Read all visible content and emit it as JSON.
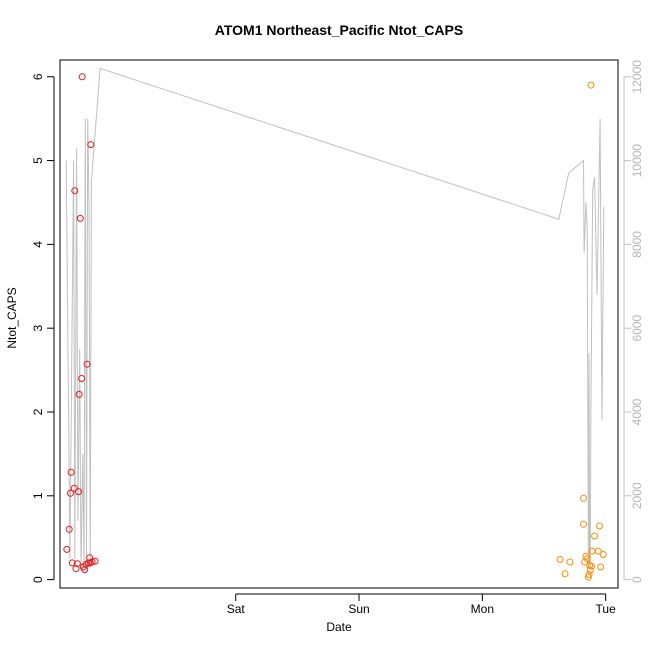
{
  "chart_data": {
    "type": "scatter",
    "title": "ATOM1 Northeast_Pacific Ntot_CAPS",
    "xlabel": "Date",
    "ylabel": "Ntot_CAPS",
    "x_tick_labels": [
      "Sat",
      "Sun",
      "Mon",
      "Tue"
    ],
    "x_tick_values": [
      1,
      2,
      3,
      4
    ],
    "xlim": [
      -0.425,
      4.1
    ],
    "y_tick_labels": [
      "0",
      "1",
      "2",
      "3",
      "4",
      "5",
      "6"
    ],
    "y_tick_values": [
      0,
      1,
      2,
      3,
      4,
      5,
      6
    ],
    "ylim": [
      -0.1,
      6.2
    ],
    "y2_tick_labels": [
      "0",
      "2000",
      "4000",
      "6000",
      "8000",
      "10000",
      "12000"
    ],
    "y2_tick_values": [
      0,
      2000,
      4000,
      6000,
      8000,
      10000,
      12000
    ],
    "y2lim": [
      -200,
      12400
    ],
    "grid": false,
    "legend": "none",
    "colors": {
      "series_red": "#e31a1c",
      "series_orange": "#ff8c00",
      "right_axis_line": "#c0c0c0",
      "right_axis_text": "#b5b5b5"
    },
    "series": [
      {
        "color": "#e31a1c",
        "marker": "open-circle",
        "points": [
          [
            -0.37,
            0.36
          ],
          [
            -0.35,
            0.6
          ],
          [
            -0.34,
            1.03
          ],
          [
            -0.335,
            1.28
          ],
          [
            -0.325,
            0.2
          ],
          [
            -0.31,
            1.09
          ],
          [
            -0.305,
            4.64
          ],
          [
            -0.295,
            0.13
          ],
          [
            -0.285,
            0.19
          ],
          [
            -0.275,
            1.05
          ],
          [
            -0.27,
            2.21
          ],
          [
            -0.26,
            4.31
          ],
          [
            -0.25,
            2.4
          ],
          [
            -0.245,
            6.0
          ],
          [
            -0.235,
            0.15
          ],
          [
            -0.225,
            0.12
          ],
          [
            -0.215,
            0.18
          ],
          [
            -0.205,
            2.57
          ],
          [
            -0.195,
            0.2
          ],
          [
            -0.185,
            0.26
          ],
          [
            -0.18,
            0.2
          ],
          [
            -0.175,
            5.19
          ],
          [
            -0.165,
            0.21
          ],
          [
            -0.14,
            0.22
          ]
        ]
      },
      {
        "color": "#ff8c00",
        "marker": "open-circle",
        "points": [
          [
            3.63,
            0.24
          ],
          [
            3.67,
            0.07
          ],
          [
            3.71,
            0.21
          ],
          [
            3.82,
            0.97
          ],
          [
            3.82,
            0.66
          ],
          [
            3.83,
            0.21
          ],
          [
            3.84,
            0.28
          ],
          [
            3.85,
            0.25
          ],
          [
            3.86,
            0.03
          ],
          [
            3.865,
            0.06
          ],
          [
            3.87,
            0.17
          ],
          [
            3.875,
            0.11
          ],
          [
            3.88,
            5.9
          ],
          [
            3.885,
            0.16
          ],
          [
            3.89,
            0.34
          ],
          [
            3.91,
            0.52
          ],
          [
            3.94,
            0.34
          ],
          [
            3.95,
            0.64
          ],
          [
            3.96,
            0.15
          ],
          [
            3.98,
            0.3
          ]
        ]
      },
      {
        "axis": "right",
        "color": "#c0c0c0",
        "type": "line",
        "points": [
          [
            -0.375,
            10000
          ],
          [
            -0.345,
            500
          ],
          [
            -0.315,
            10000
          ],
          [
            -0.305,
            500
          ],
          [
            -0.29,
            10300
          ],
          [
            -0.28,
            1400
          ],
          [
            -0.265,
            5500
          ],
          [
            -0.255,
            200
          ],
          [
            -0.24,
            3000
          ],
          [
            -0.23,
            300
          ],
          [
            -0.22,
            11000
          ],
          [
            -0.21,
            500
          ],
          [
            -0.2,
            11000
          ],
          [
            -0.19,
            9000
          ],
          [
            -0.18,
            300
          ],
          [
            -0.17,
            9500
          ],
          [
            -0.1,
            12200
          ],
          [
            3.62,
            8600
          ],
          [
            3.7,
            9700
          ],
          [
            3.82,
            10000
          ],
          [
            3.825,
            7800
          ],
          [
            3.84,
            9000
          ],
          [
            3.85,
            8400
          ],
          [
            3.86,
            300
          ],
          [
            3.865,
            5400
          ],
          [
            3.87,
            400
          ],
          [
            3.875,
            300
          ],
          [
            3.88,
            4000
          ],
          [
            3.895,
            9300
          ],
          [
            3.91,
            9600
          ],
          [
            3.93,
            6800
          ],
          [
            3.955,
            11000
          ],
          [
            3.97,
            3800
          ],
          [
            3.985,
            8900
          ]
        ]
      }
    ]
  }
}
